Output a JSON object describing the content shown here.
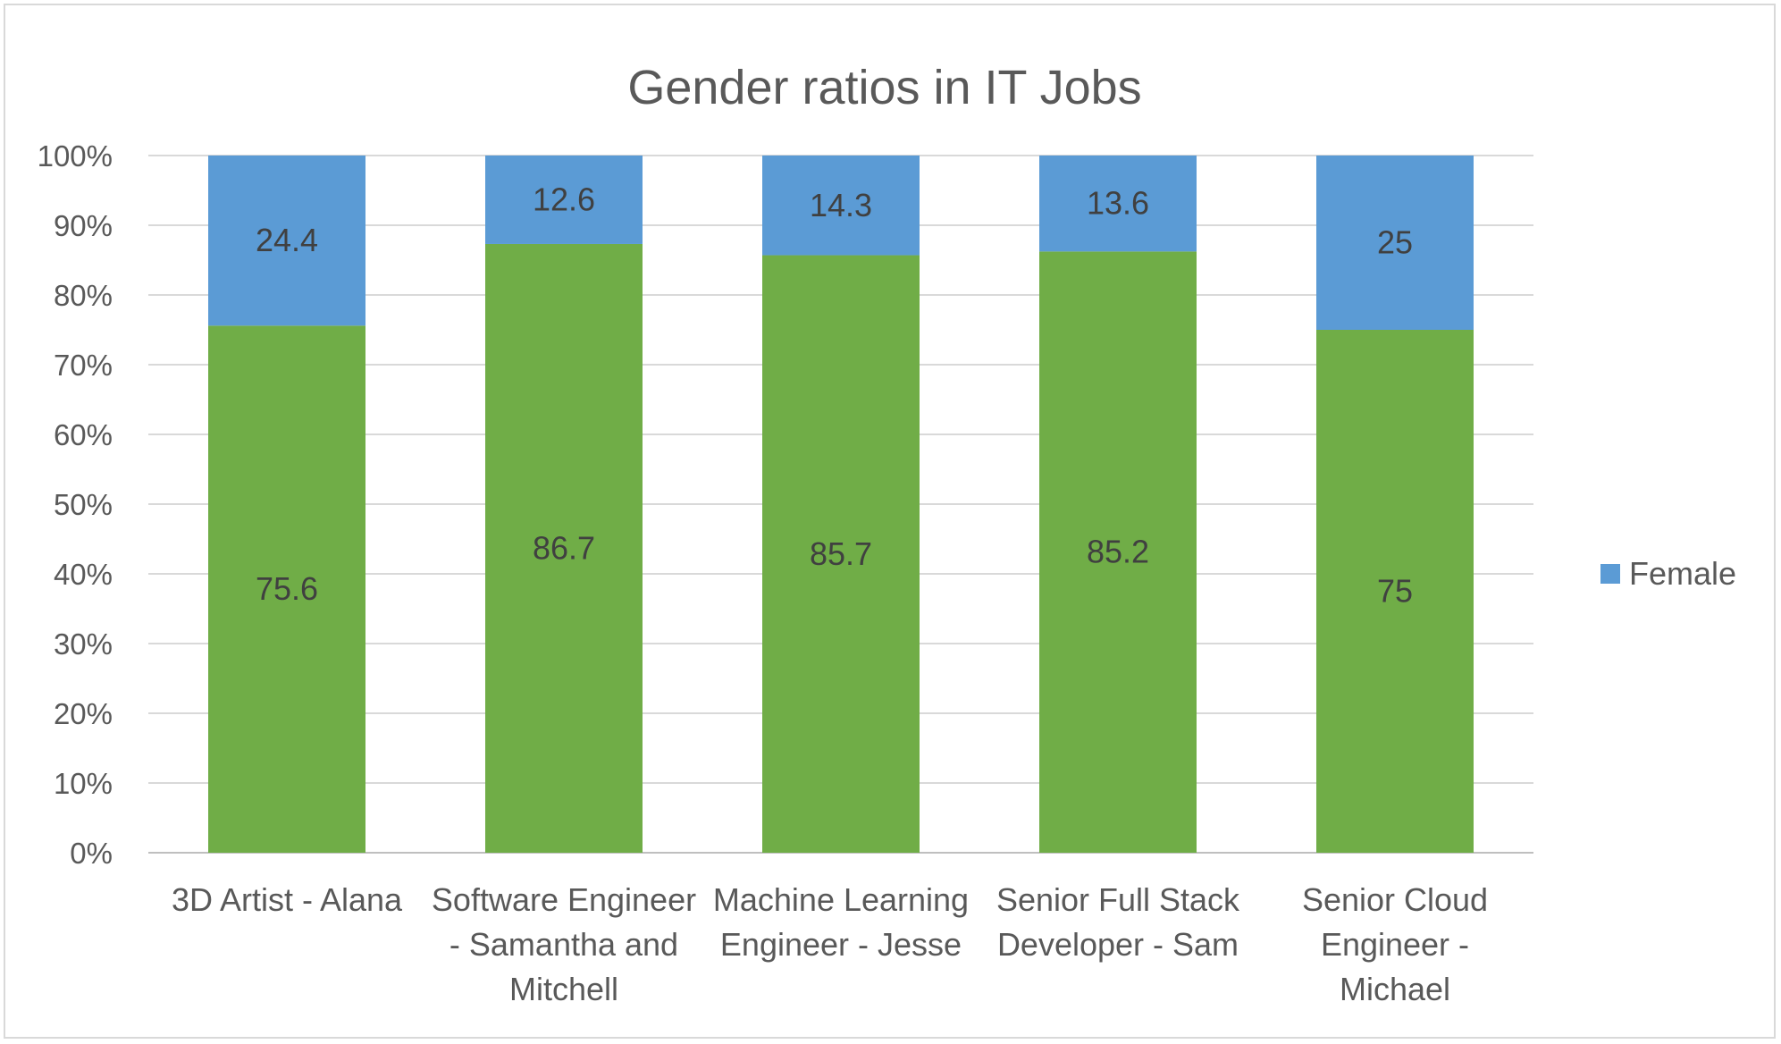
{
  "chart_data": {
    "type": "bar",
    "stacked": true,
    "normalized_percent": true,
    "title": "Gender ratios in IT Jobs",
    "xlabel": "",
    "ylabel": "",
    "ylim": [
      0,
      100
    ],
    "yticks": [
      "0%",
      "10%",
      "20%",
      "30%",
      "40%",
      "50%",
      "60%",
      "70%",
      "80%",
      "90%",
      "100%"
    ],
    "grid": true,
    "legend_position": "right",
    "categories": [
      [
        "3D Artist - Alana"
      ],
      [
        "Software Engineer",
        "- Samantha and",
        "Mitchell"
      ],
      [
        "Machine Learning",
        "Engineer - Jesse"
      ],
      [
        "Senior Full Stack",
        "Developer - Sam"
      ],
      [
        "Senior Cloud",
        "Engineer -",
        "Michael"
      ]
    ],
    "series": [
      {
        "values": [
          75.6,
          86.7,
          85.7,
          85.2,
          75
        ],
        "color": "#70ad47",
        "in_legend": false
      },
      {
        "name": "Female",
        "values": [
          24.4,
          12.6,
          14.3,
          13.6,
          25
        ],
        "color": "#5b9bd5",
        "in_legend": true
      }
    ]
  }
}
